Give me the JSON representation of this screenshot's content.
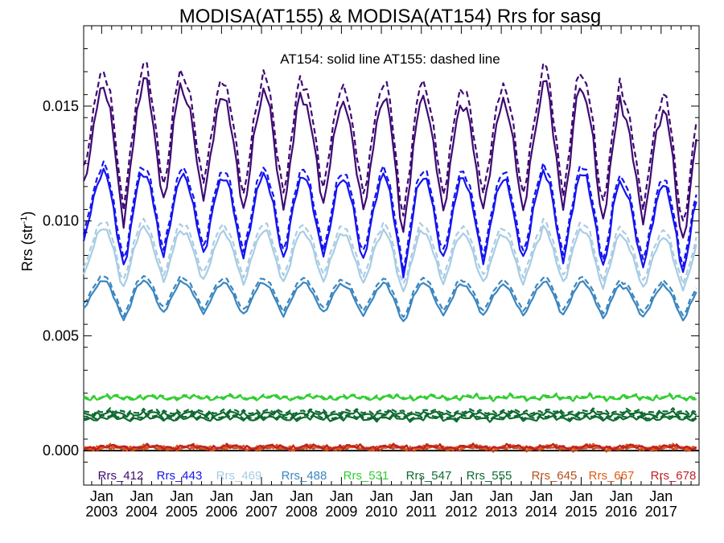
{
  "chart_data": {
    "type": "line",
    "title": "MODISA(AT155) & MODISA(AT154)  Rrs for sasg",
    "annotation": "AT154: solid line   AT155: dashed line",
    "ylabel": "Rrs (str",
    "ylabel_sup": "-1",
    "ylabel_close": ")",
    "ylim": [
      -0.0015,
      0.0185
    ],
    "xlim": [
      2002.55,
      2017.95
    ],
    "yticks": [
      {
        "v": 0.0,
        "label": "0.000"
      },
      {
        "v": 0.005,
        "label": "0.005"
      },
      {
        "v": 0.01,
        "label": "0.010"
      },
      {
        "v": 0.015,
        "label": "0.015"
      }
    ],
    "xticks": [
      {
        "v": 2003,
        "month": "Jan",
        "year": "2003"
      },
      {
        "v": 2004,
        "month": "Jan",
        "year": "2004"
      },
      {
        "v": 2005,
        "month": "Jan",
        "year": "2005"
      },
      {
        "v": 2006,
        "month": "Jan",
        "year": "2006"
      },
      {
        "v": 2007,
        "month": "Jan",
        "year": "2007"
      },
      {
        "v": 2008,
        "month": "Jan",
        "year": "2008"
      },
      {
        "v": 2009,
        "month": "Jan",
        "year": "2009"
      },
      {
        "v": 2010,
        "month": "Jan",
        "year": "2010"
      },
      {
        "v": 2011,
        "month": "Jan",
        "year": "2011"
      },
      {
        "v": 2012,
        "month": "Jan",
        "year": "2012"
      },
      {
        "v": 2013,
        "month": "Jan",
        "year": "2013"
      },
      {
        "v": 2014,
        "month": "Jan",
        "year": "2014"
      },
      {
        "v": 2015,
        "month": "Jan",
        "year": "2015"
      },
      {
        "v": 2016,
        "month": "Jan",
        "year": "2016"
      },
      {
        "v": 2017,
        "month": "Jan",
        "year": "2017"
      }
    ],
    "zero_line": 0,
    "legend_position": "bottom",
    "series": [
      {
        "name": "Rrs_412",
        "color": "#3f0a73",
        "at154_peaks": [
          0.0158,
          0.0162,
          0.0155,
          0.0153,
          0.0157,
          0.0152,
          0.015,
          0.0155,
          0.0152,
          0.015,
          0.0152,
          0.0162,
          0.0155,
          0.0146,
          0.0148
        ],
        "at154_troughs": [
          0.0115,
          0.01,
          0.0108,
          0.011,
          0.0105,
          0.0105,
          0.0108,
          0.0105,
          0.0095,
          0.0105,
          0.0105,
          0.0105,
          0.0105,
          0.01,
          0.01,
          0.009
        ],
        "at155_offset": 0.0007
      },
      {
        "name": "Rrs_443",
        "color": "#1414f0",
        "at154_peaks": [
          0.0121,
          0.0121,
          0.0119,
          0.0119,
          0.012,
          0.0119,
          0.0118,
          0.012,
          0.0119,
          0.0118,
          0.0118,
          0.0122,
          0.012,
          0.0114,
          0.0116
        ],
        "at154_troughs": [
          0.0092,
          0.008,
          0.0085,
          0.0086,
          0.0084,
          0.0084,
          0.0085,
          0.0083,
          0.0077,
          0.0083,
          0.0083,
          0.0083,
          0.0083,
          0.008,
          0.008,
          0.0078
        ],
        "at155_offset": 0.0003
      },
      {
        "name": "Rrs_469",
        "color": "#a8cce4",
        "at154_peaks": [
          0.0097,
          0.0097,
          0.0095,
          0.0095,
          0.0096,
          0.0095,
          0.0094,
          0.0096,
          0.0095,
          0.0094,
          0.0094,
          0.0097,
          0.0096,
          0.0092,
          0.0093
        ],
        "at154_troughs": [
          0.0077,
          0.0071,
          0.0074,
          0.0074,
          0.0073,
          0.0073,
          0.0074,
          0.0073,
          0.0069,
          0.0073,
          0.0073,
          0.0073,
          0.0073,
          0.0071,
          0.0071,
          0.007
        ],
        "at155_offset": 0.0003
      },
      {
        "name": "Rrs_488",
        "color": "#3a86c0",
        "at154_peaks": [
          0.0074,
          0.0074,
          0.0073,
          0.0073,
          0.0073,
          0.0073,
          0.0072,
          0.0073,
          0.0073,
          0.0072,
          0.0072,
          0.0074,
          0.0073,
          0.0071,
          0.0072
        ],
        "at154_troughs": [
          0.0062,
          0.0057,
          0.006,
          0.006,
          0.0059,
          0.0059,
          0.006,
          0.0059,
          0.0056,
          0.0059,
          0.0059,
          0.0059,
          0.0059,
          0.0058,
          0.0058,
          0.0057
        ],
        "at155_offset": 0.0002
      },
      {
        "name": "Rrs_531",
        "color": "#32cd32",
        "at154_level": 0.0023,
        "at155_level": 0.00235
      },
      {
        "name": "Rrs_547",
        "color": "#0e6b30",
        "at154_level": 0.0016,
        "at155_level": 0.0017
      },
      {
        "name": "Rrs_555",
        "color": "#0e6b30",
        "at154_level": 0.0014,
        "at155_level": 0.00148
      },
      {
        "name": "Rrs_645",
        "color": "#b4501e",
        "at154_level": 0.0001,
        "at155_level": 0.00012
      },
      {
        "name": "Rrs_667",
        "color": "#e05a10",
        "at154_level": 0.00013,
        "at155_level": 0.00015
      },
      {
        "name": "Rrs_678",
        "color": "#c0202a",
        "at154_level": 0.00015,
        "at155_level": 0.00017
      }
    ]
  }
}
